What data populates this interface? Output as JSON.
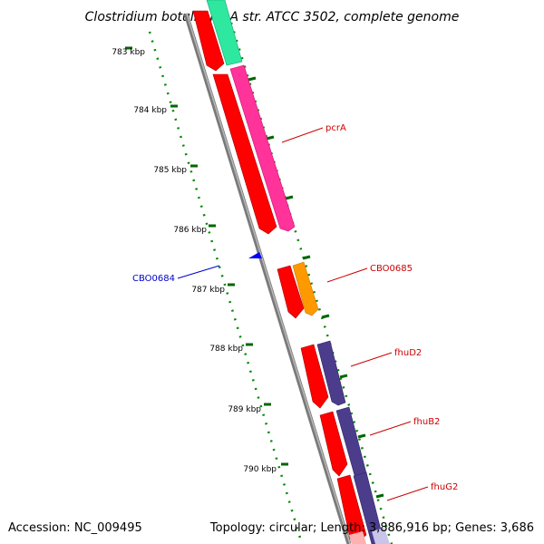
{
  "title": "Clostridium botulinum A str. ATCC 3502, complete genome",
  "accession": "Accession: NC_009495",
  "summary": "Topology: circular; Length: 3,886,916 bp; Genes: 3,686",
  "ticks": [
    {
      "label": "783 kbp"
    },
    {
      "label": "784 kbp"
    },
    {
      "label": "785 kbp"
    },
    {
      "label": "786 kbp"
    },
    {
      "label": "787 kbp"
    },
    {
      "label": "788 kbp"
    },
    {
      "label": "789 kbp"
    },
    {
      "label": "790 kbp"
    }
  ],
  "genes": [
    {
      "name": "pcrA",
      "color": "#cc0000"
    },
    {
      "name": "CBO0685",
      "color": "#cc0000"
    },
    {
      "name": "fhuD2",
      "color": "#cc0000"
    },
    {
      "name": "fhuB2",
      "color": "#cc0000"
    },
    {
      "name": "fhuG2",
      "color": "#cc0000"
    },
    {
      "name": "CBO0684",
      "color": "#0000cc"
    }
  ],
  "colors": {
    "cds": "#ff0000",
    "green": "#2ee8a0",
    "magenta": "#ff3399",
    "orange": "#ff9900",
    "purple": "#4b3d8c",
    "lavender": "#c9c5ea",
    "backbone": "#808080",
    "tick": "#006600",
    "blue": "#0000ff"
  }
}
